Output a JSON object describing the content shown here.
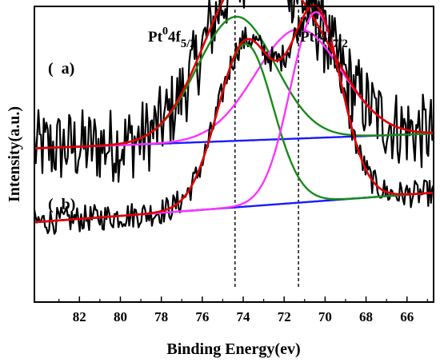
{
  "chart_data": {
    "type": "line",
    "xlabel": "Binding Energy(ev)",
    "ylabel": "Intensity(a.u.)",
    "x_reversed": true,
    "xlim": [
      84.2,
      64.7
    ],
    "xticks": [
      82,
      80,
      78,
      76,
      74,
      72,
      70,
      68,
      66
    ],
    "y_ticks_shown": false,
    "reference_lines": [
      {
        "x": 74.4,
        "label_main": "Pt",
        "label_sup": "0",
        "label_orb": "4f",
        "label_sub": "5/2"
      },
      {
        "x": 71.3,
        "label_main": "Pt",
        "label_sup": "0",
        "label_orb": "4f",
        "label_sub": "7/2"
      }
    ],
    "panels": [
      {
        "label": "(  a)",
        "background_level": 0.52,
        "background_end": 0.57,
        "noise_amplitude": 0.13,
        "peaks": [
          {
            "center": 74.35,
            "height": 0.42,
            "width": 1.9,
            "color": "#1a8a1a"
          },
          {
            "center": 71.3,
            "height": 0.37,
            "width": 2.1,
            "color": "#ff33ff"
          }
        ]
      },
      {
        "label": "(  b)",
        "background_level": 0.27,
        "background_end": 0.37,
        "noise_amplitude": 0.045,
        "peaks": [
          {
            "center": 73.9,
            "height": 0.55,
            "width": 1.35,
            "color": "#1a8a1a"
          },
          {
            "center": 70.45,
            "height": 0.64,
            "width": 1.25,
            "color": "#ff33ff"
          }
        ]
      }
    ],
    "series_colors": {
      "raw": "#000000",
      "envelope": "#e00000",
      "baseline": "#1a1aff",
      "peak_5_2": "#1a8a1a",
      "peak_7_2": "#ff33ff"
    }
  }
}
